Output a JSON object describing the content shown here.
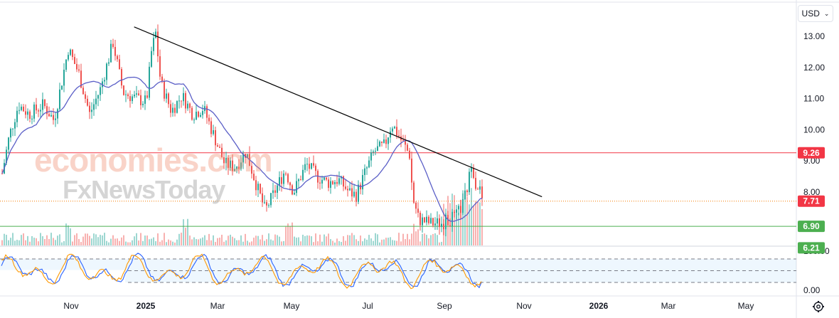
{
  "currency": {
    "label": "USD",
    "icon": "chevron-down-icon"
  },
  "watermark": {
    "line1": "economies.com",
    "line2": "FxNewsToday"
  },
  "settings_icon": "gear-icon",
  "chart_data": [
    {
      "type": "candlestick",
      "y_ticks": [
        "13.00",
        "12.00",
        "11.00",
        "10.00",
        "9.00",
        "8.00"
      ],
      "ylim": [
        6.0,
        13.5
      ],
      "x_ticks": [
        "Nov",
        "2025",
        "Mar",
        "May",
        "Jul",
        "Sep",
        "Nov",
        "2026",
        "Mar",
        "May"
      ],
      "price_labels": [
        {
          "value": 9.26,
          "label": "9.26",
          "color": "#f23645"
        },
        {
          "value": 7.71,
          "label": "7.71",
          "color": "#f23645"
        },
        {
          "value": 6.9,
          "label": "6.90",
          "color": "#4caf50"
        },
        {
          "value": 6.21,
          "label": "6.21",
          "color": "#4caf50"
        }
      ],
      "horizontal_lines": [
        {
          "value": 9.26,
          "color": "#f23645",
          "style": "solid"
        },
        {
          "value": 7.71,
          "color": "#f57c00",
          "style": "dotted"
        },
        {
          "value": 6.9,
          "color": "#4caf50",
          "style": "solid"
        }
      ],
      "trendline": [
        {
          "date": "2025-01-05",
          "value": 13.3
        },
        {
          "date": "2025-12-01",
          "value": 7.85
        }
      ],
      "moving_average_color": "#5b5fc7",
      "bull_color": "#26a69a",
      "bear_color": "#ef5350"
    },
    {
      "type": "line",
      "indicator": "oscillator",
      "y_ticks": [
        "100.00",
        "0.00"
      ],
      "ylim": [
        0,
        100
      ],
      "bands": [
        80,
        50,
        20
      ],
      "series_colors": [
        "#2962ff",
        "#ff9800"
      ]
    }
  ]
}
